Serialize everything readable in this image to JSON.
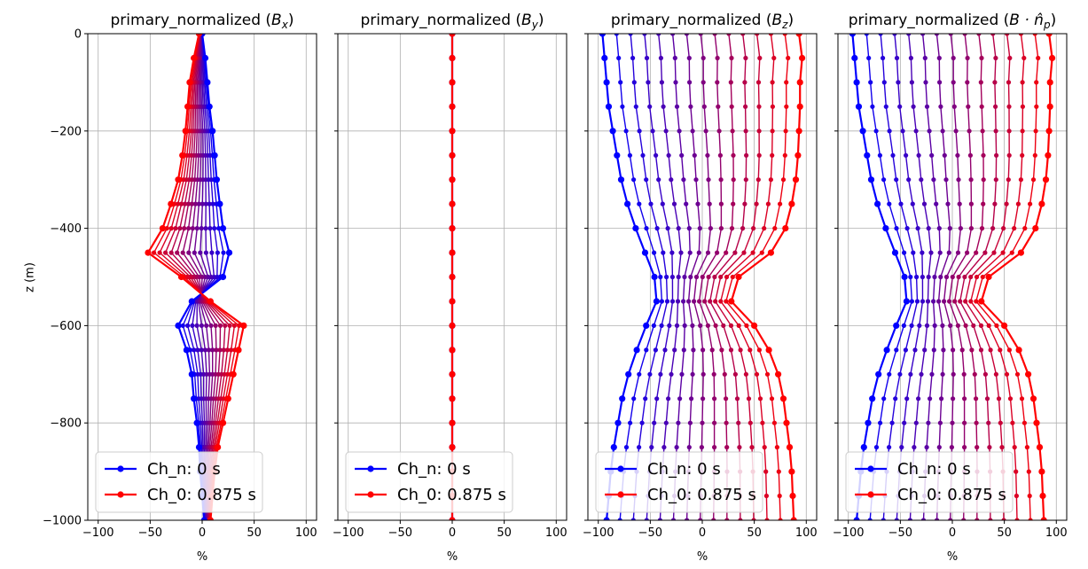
{
  "figure": {
    "ylabel": "z (m)",
    "xlabel": "%"
  },
  "chart_data": [
    {
      "type": "line",
      "title_prefix": "primary_normalized (",
      "title_var": "B",
      "title_sub": "x",
      "title_suffix": ")",
      "xlabel": "%",
      "ylabel": "z (m)",
      "xlim": [
        -110,
        110
      ],
      "ylim": [
        -1000,
        0
      ],
      "xticks": [
        -100,
        -50,
        0,
        50,
        100
      ],
      "yticks": [
        0,
        -200,
        -400,
        -600,
        -800,
        -1000
      ],
      "grid": true,
      "legend": {
        "placement": "lower-left",
        "entries": [
          "Ch_n: 0 s",
          "Ch_0: 0.875 s"
        ]
      },
      "depths": [
        0,
        -50,
        -100,
        -150,
        -200,
        -250,
        -300,
        -350,
        -400,
        -450,
        -500,
        -550,
        -600,
        -650,
        -700,
        -750,
        -800,
        -850,
        -900,
        -950,
        -1000
      ],
      "shape": "bx",
      "num_series": 15
    },
    {
      "type": "line",
      "title_prefix": "primary_normalized (",
      "title_var": "B",
      "title_sub": "y",
      "title_suffix": ")",
      "xlabel": "%",
      "ylabel": "",
      "xlim": [
        -110,
        110
      ],
      "ylim": [
        -1000,
        0
      ],
      "xticks": [
        -100,
        -50,
        0,
        50,
        100
      ],
      "yticks": [
        0,
        -200,
        -400,
        -600,
        -800,
        -1000
      ],
      "grid": true,
      "legend": {
        "placement": "lower-left",
        "entries": [
          "Ch_n: 0 s",
          "Ch_0: 0.875 s"
        ]
      },
      "depths": [
        0,
        -50,
        -100,
        -150,
        -200,
        -250,
        -300,
        -350,
        -400,
        -450,
        -500,
        -550,
        -600,
        -650,
        -700,
        -750,
        -800,
        -850,
        -900,
        -950,
        -1000
      ],
      "shape": "by",
      "num_series": 15
    },
    {
      "type": "line",
      "title_prefix": "primary_normalized (",
      "title_var": "B",
      "title_sub": "z",
      "title_suffix": ")",
      "xlabel": "%",
      "ylabel": "",
      "xlim": [
        -110,
        110
      ],
      "ylim": [
        -1000,
        0
      ],
      "xticks": [
        -100,
        -50,
        0,
        50,
        100
      ],
      "yticks": [
        0,
        -200,
        -400,
        -600,
        -800,
        -1000
      ],
      "grid": true,
      "legend": {
        "placement": "lower-left",
        "entries": [
          "Ch_n: 0 s",
          "Ch_0: 0.875 s"
        ]
      },
      "depths": [
        0,
        -50,
        -100,
        -150,
        -200,
        -250,
        -300,
        -350,
        -400,
        -450,
        -500,
        -550,
        -600,
        -650,
        -700,
        -750,
        -800,
        -850,
        -900,
        -950,
        -1000
      ],
      "shape": "bz",
      "num_series": 15
    },
    {
      "type": "line",
      "title_prefix": "primary_normalized (",
      "title_var": "B · n̂",
      "title_sub": "p",
      "title_suffix": ")",
      "xlabel": "%",
      "ylabel": "",
      "xlim": [
        -110,
        110
      ],
      "ylim": [
        -1000,
        0
      ],
      "xticks": [
        -100,
        -50,
        0,
        50,
        100
      ],
      "yticks": [
        0,
        -200,
        -400,
        -600,
        -800,
        -1000
      ],
      "grid": true,
      "legend": {
        "placement": "lower-left",
        "entries": [
          "Ch_n: 0 s",
          "Ch_0: 0.875 s"
        ]
      },
      "depths": [
        0,
        -50,
        -100,
        -150,
        -200,
        -250,
        -300,
        -350,
        -400,
        -450,
        -500,
        -550,
        -600,
        -650,
        -700,
        -750,
        -800,
        -850,
        -900,
        -950,
        -1000
      ],
      "shape": "bz",
      "num_series": 15
    }
  ],
  "series_profiles": {
    "bx": {
      "first": [
        0,
        3,
        5,
        7,
        10,
        12,
        14,
        17,
        20,
        26,
        20,
        -10,
        -23,
        -15,
        -10,
        -8,
        -5,
        -3,
        -2,
        0,
        2
      ],
      "last": [
        -3,
        -8,
        -12,
        -14,
        -16,
        -19,
        -23,
        -30,
        -38,
        -52,
        -20,
        8,
        40,
        35,
        30,
        25,
        20,
        15,
        12,
        10,
        8
      ]
    },
    "by": {
      "first": [
        0,
        0,
        0,
        0,
        0,
        0,
        0,
        0,
        0,
        0,
        0,
        0,
        0,
        0,
        0,
        0,
        0,
        0,
        0,
        0,
        0
      ],
      "last": [
        0,
        0,
        0,
        0,
        0,
        0,
        0,
        0,
        0,
        0,
        0,
        0,
        0,
        0,
        0,
        0,
        0,
        0,
        0,
        0,
        0
      ]
    },
    "bz": {
      "first": [
        -96,
        -94,
        -92,
        -90,
        -86,
        -82,
        -78,
        -72,
        -64,
        -55,
        -46,
        -44,
        -54,
        -63,
        -71,
        -77,
        -81,
        -85,
        -88,
        -90,
        -92
      ],
      "last": [
        93,
        96,
        94,
        94,
        93,
        92,
        90,
        86,
        80,
        66,
        35,
        28,
        50,
        64,
        73,
        78,
        81,
        84,
        86,
        87,
        88
      ]
    }
  },
  "colors": {
    "first": "#0000ff",
    "last": "#ff0000",
    "grid": "#b0b0b0",
    "axis": "#000000",
    "legend_border": "#cccccc"
  }
}
